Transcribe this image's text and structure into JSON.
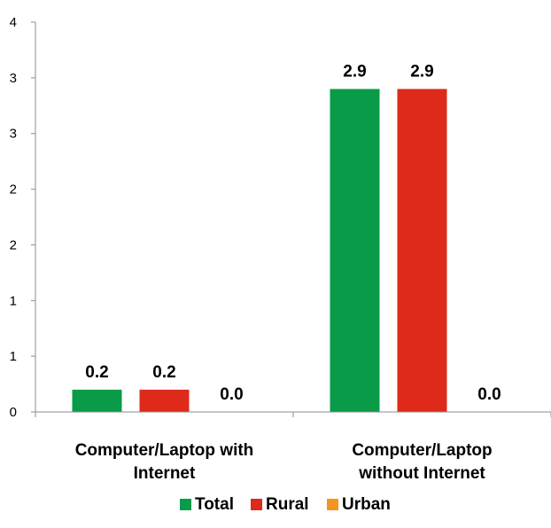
{
  "chart_data": {
    "type": "bar",
    "categories": [
      [
        "Computer/Laptop with",
        "Internet"
      ],
      [
        "Computer/Laptop",
        "without Internet"
      ]
    ],
    "series": [
      {
        "name": "Total",
        "color": "#0a9b48",
        "values": [
          0.2,
          2.9
        ],
        "labels": [
          "0.2",
          "2.9"
        ]
      },
      {
        "name": "Rural",
        "color": "#dd2a1b",
        "values": [
          0.2,
          2.9
        ],
        "labels": [
          "0.2",
          "2.9"
        ]
      },
      {
        "name": "Urban",
        "color": "#f7941d",
        "values": [
          0.0,
          0.0
        ],
        "labels": [
          "0.0",
          "0.0"
        ]
      }
    ],
    "y_ticks": [
      "0",
      "1",
      "1",
      "2",
      "2",
      "3",
      "3",
      "4"
    ],
    "ylim": [
      0,
      3.5
    ],
    "grid": false,
    "legend_position": "bottom"
  }
}
